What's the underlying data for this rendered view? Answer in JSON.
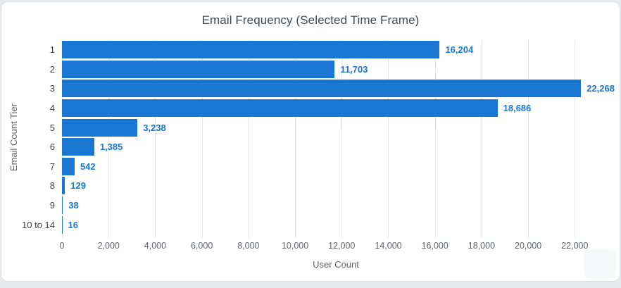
{
  "chart_data": {
    "type": "bar",
    "orientation": "horizontal",
    "title": "Email Frequency (Selected Time Frame)",
    "xlabel": "User Count",
    "ylabel": "Email Count Tier",
    "categories": [
      "1",
      "2",
      "3",
      "4",
      "5",
      "6",
      "7",
      "8",
      "9",
      "10 to 14"
    ],
    "values": [
      16204,
      11703,
      22268,
      18686,
      3238,
      1385,
      542,
      129,
      38,
      16
    ],
    "value_labels": [
      "16,204",
      "11,703",
      "22,268",
      "18,686",
      "3,238",
      "1,385",
      "542",
      "129",
      "38",
      "16"
    ],
    "xticks": [
      0,
      2000,
      4000,
      6000,
      8000,
      10000,
      12000,
      14000,
      16000,
      18000,
      20000,
      22000
    ],
    "xtick_labels": [
      "0",
      "2,000",
      "4,000",
      "6,000",
      "8,000",
      "10,000",
      "12,000",
      "14,000",
      "16,000",
      "18,000",
      "20,000",
      "22,000"
    ],
    "xlim": [
      0,
      23500
    ],
    "grid": true,
    "legend": false,
    "bar_color": "#1976d2",
    "value_label_color": "#1976d2",
    "gridline_color": "#e4e6e8"
  }
}
